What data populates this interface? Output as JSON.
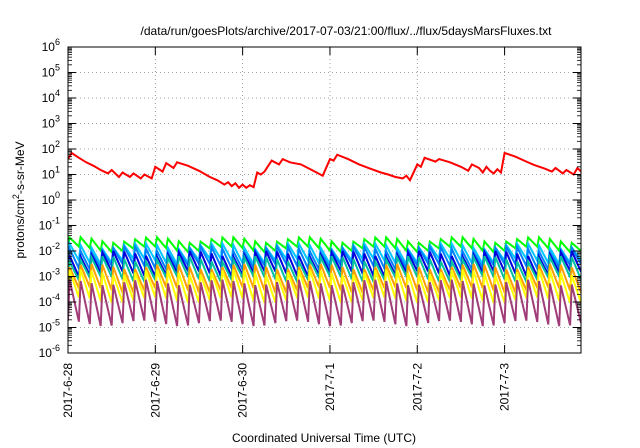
{
  "chart_data": {
    "type": "line",
    "title": "/data/run/goesPlots/archive/2017-07-03/21:00/flux/../flux/5daysMarsFluxes.txt",
    "xlabel": "Coordinated Universal Time (UTC)",
    "ylabel": {
      "prefix": "protons/cm",
      "sup": "2",
      "suffix": "-s-sr-MeV"
    },
    "yscale": "log",
    "ylim_exponents": [
      -6,
      6
    ],
    "y_ticks": [
      {
        "base": "10",
        "exp": "-6"
      },
      {
        "base": "10",
        "exp": "-5"
      },
      {
        "base": "10",
        "exp": "-4"
      },
      {
        "base": "10",
        "exp": "-3"
      },
      {
        "base": "10",
        "exp": "-2"
      },
      {
        "base": "10",
        "exp": "-1"
      },
      {
        "base": "10",
        "exp": "0"
      },
      {
        "base": "10",
        "exp": "1"
      },
      {
        "base": "10",
        "exp": "2"
      },
      {
        "base": "10",
        "exp": "3"
      },
      {
        "base": "10",
        "exp": "4"
      },
      {
        "base": "10",
        "exp": "5"
      },
      {
        "base": "10",
        "exp": "6"
      }
    ],
    "x_ticks": [
      "2017-6-28",
      "2017-6-29",
      "2017-6-30",
      "2017-7-1",
      "2017-7-2",
      "2017-7-3"
    ],
    "xlim": [
      "2017-06-28T00:00",
      "2017-07-03T21:00"
    ],
    "grid": true,
    "legend": "none",
    "series": [
      {
        "color": "#ff0000",
        "points": [
          [
            "2017-06-28T00:00",
            40
          ],
          [
            "2017-06-28T01:00",
            70
          ],
          [
            "2017-06-28T03:00",
            45
          ],
          [
            "2017-06-28T05:00",
            30
          ],
          [
            "2017-06-28T07:00",
            22
          ],
          [
            "2017-06-28T09:00",
            15
          ],
          [
            "2017-06-28T11:00",
            11
          ],
          [
            "2017-06-28T12:00",
            15
          ],
          [
            "2017-06-28T14:00",
            8
          ],
          [
            "2017-06-28T15:00",
            12
          ],
          [
            "2017-06-28T17:00",
            8
          ],
          [
            "2017-06-28T18:00",
            11
          ],
          [
            "2017-06-28T20:00",
            7
          ],
          [
            "2017-06-28T21:00",
            10
          ],
          [
            "2017-06-28T23:00",
            7
          ],
          [
            "2017-06-29T00:00",
            20
          ],
          [
            "2017-06-29T02:00",
            13
          ],
          [
            "2017-06-29T03:00",
            28
          ],
          [
            "2017-06-29T05:00",
            18
          ],
          [
            "2017-06-29T06:00",
            30
          ],
          [
            "2017-06-29T09:00",
            22
          ],
          [
            "2017-06-29T12:00",
            14
          ],
          [
            "2017-06-29T15:00",
            8
          ],
          [
            "2017-06-29T17:00",
            6
          ],
          [
            "2017-06-29T19:00",
            4
          ],
          [
            "2017-06-29T20:00",
            5
          ],
          [
            "2017-06-29T21:00",
            3.5
          ],
          [
            "2017-06-29T22:00",
            4.5
          ],
          [
            "2017-06-29T23:00",
            3
          ],
          [
            "2017-06-30T00:00",
            4
          ],
          [
            "2017-06-30T01:00",
            3
          ],
          [
            "2017-06-30T02:00",
            3.8
          ],
          [
            "2017-06-30T03:00",
            3.2
          ],
          [
            "2017-06-30T04:00",
            12
          ],
          [
            "2017-06-30T05:00",
            10
          ],
          [
            "2017-06-30T06:00",
            13
          ],
          [
            "2017-06-30T08:00",
            35
          ],
          [
            "2017-06-30T10:00",
            25
          ],
          [
            "2017-06-30T11:00",
            40
          ],
          [
            "2017-06-30T13:00",
            30
          ],
          [
            "2017-06-30T16:00",
            25
          ],
          [
            "2017-06-30T19:00",
            15
          ],
          [
            "2017-06-30T22:00",
            9
          ],
          [
            "2017-07-01T00:00",
            40
          ],
          [
            "2017-07-01T01:00",
            35
          ],
          [
            "2017-07-01T02:00",
            60
          ],
          [
            "2017-07-01T05:00",
            40
          ],
          [
            "2017-07-01T08:00",
            25
          ],
          [
            "2017-07-01T11:00",
            17
          ],
          [
            "2017-07-01T14:00",
            12
          ],
          [
            "2017-07-01T16:00",
            10
          ],
          [
            "2017-07-01T18:00",
            8
          ],
          [
            "2017-07-01T20:00",
            7
          ],
          [
            "2017-07-01T21:00",
            9
          ],
          [
            "2017-07-01T22:00",
            6
          ],
          [
            "2017-07-02T00:00",
            25
          ],
          [
            "2017-07-02T01:00",
            20
          ],
          [
            "2017-07-02T02:00",
            45
          ],
          [
            "2017-07-02T05:00",
            32
          ],
          [
            "2017-07-02T06:00",
            40
          ],
          [
            "2017-07-02T09:00",
            30
          ],
          [
            "2017-07-02T12:00",
            20
          ],
          [
            "2017-07-02T14:00",
            14
          ],
          [
            "2017-07-02T15:00",
            25
          ],
          [
            "2017-07-02T17:00",
            18
          ],
          [
            "2017-07-02T18:00",
            12
          ],
          [
            "2017-07-02T19:00",
            20
          ],
          [
            "2017-07-02T20:00",
            14
          ],
          [
            "2017-07-02T21:00",
            11
          ],
          [
            "2017-07-02T22:00",
            16
          ],
          [
            "2017-07-02T23:00",
            12
          ],
          [
            "2017-07-03T00:00",
            70
          ],
          [
            "2017-07-03T03:00",
            50
          ],
          [
            "2017-07-03T06:00",
            32
          ],
          [
            "2017-07-03T08:00",
            24
          ],
          [
            "2017-07-03T11:00",
            17
          ],
          [
            "2017-07-03T13:00",
            13
          ],
          [
            "2017-07-03T14:00",
            18
          ],
          [
            "2017-07-03T16:00",
            11
          ],
          [
            "2017-07-03T17:00",
            15
          ],
          [
            "2017-07-03T19:00",
            10
          ],
          [
            "2017-07-03T20:00",
            18
          ],
          [
            "2017-07-03T21:00",
            13
          ]
        ]
      },
      {
        "color": "#00ff00",
        "baseline": 0.012,
        "peak": 0.028,
        "period_hours": 3
      },
      {
        "color": "#00c8ff",
        "baseline": 0.004,
        "peak": 0.016,
        "period_hours": 3
      },
      {
        "color": "#0080ff",
        "baseline": 0.0025,
        "peak": 0.012,
        "period_hours": 3
      },
      {
        "color": "#0000dd",
        "baseline": 0.0013,
        "peak": 0.008,
        "period_hours": 3
      },
      {
        "color": "#00c0a0",
        "baseline": 0.0008,
        "peak": 0.005,
        "period_hours": 3
      },
      {
        "color": "#ffa000",
        "baseline": 0.0003,
        "peak": 0.0025,
        "period_hours": 3
      },
      {
        "color": "#ffff00",
        "baseline": 0.00012,
        "peak": 0.0015,
        "period_hours": 3
      },
      {
        "color": "#a03c78",
        "baseline": 1.5e-05,
        "peak": 0.0006,
        "period_hours": 3
      }
    ]
  }
}
